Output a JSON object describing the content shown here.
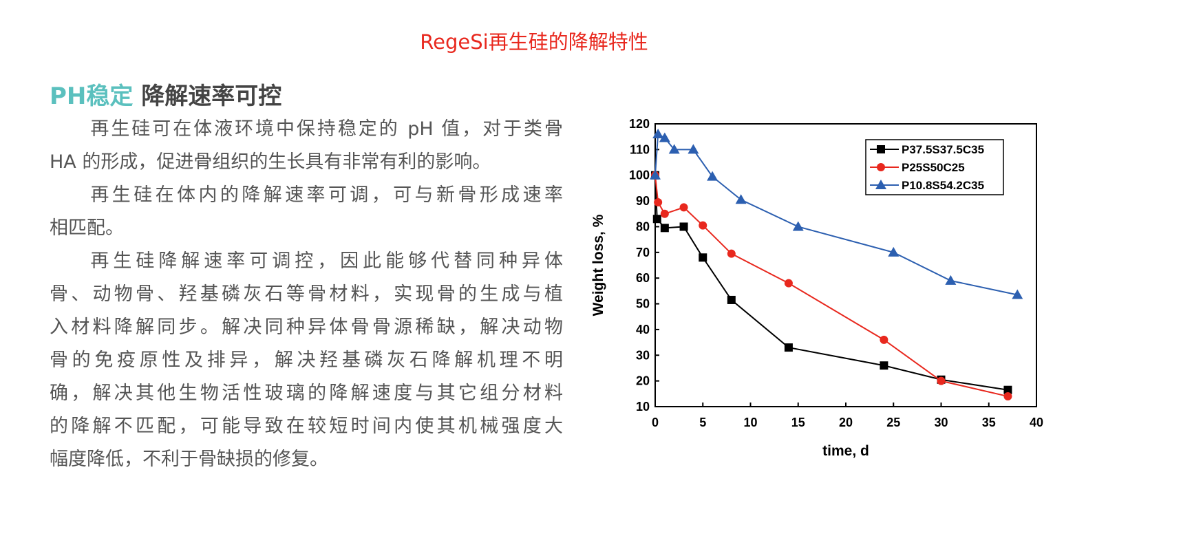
{
  "header": {
    "title": "RegeSi再生硅的降解特性"
  },
  "section": {
    "heading_highlight": "PH稳定",
    "heading_rest": "降解速率可控",
    "paragraphs": [
      [
        "再生硅可在体液环境中保持稳定的 pH 值，对于类骨",
        "HA 的形成，促进骨组织的生长具有非常有利的影响。"
      ],
      [
        "再生硅在体内的降解速率可调，可与新骨形成速率",
        "相匹配。"
      ],
      [
        "再生硅降解速率可调控，因此能够代替同种异体",
        "骨、动物骨、羟基磷灰石等骨材料，实现骨的生成与植",
        "入材料降解同步。解决同种异体骨骨源稀缺，解决动物",
        "骨的免疫原性及排异，解决羟基磷灰石降解机理不明",
        "确，解决其他生物活性玻璃的降解速度与其它组分材料",
        "的降解不匹配，可能导致在较短时间内使其机械强度大",
        "幅度降低，不利于骨缺损的修复。"
      ]
    ]
  },
  "chart_data": {
    "type": "line",
    "x_label": "time, d",
    "y_label": "Weight loss, %",
    "xlim": [
      0,
      40
    ],
    "xticks": [
      0,
      5,
      10,
      15,
      20,
      25,
      30,
      35,
      40
    ],
    "ylim": [
      10,
      120
    ],
    "yticks": [
      10,
      20,
      30,
      40,
      50,
      60,
      70,
      80,
      90,
      100,
      110,
      120
    ],
    "legend": "upper-right",
    "series": [
      {
        "name": "P37.5S37.5C35",
        "color": "#000000",
        "marker": "square",
        "x": [
          0,
          0.2,
          1,
          3,
          5,
          8,
          14,
          24,
          30,
          37
        ],
        "values": [
          100,
          83,
          79.5,
          80,
          68,
          51.5,
          33,
          26,
          20.5,
          16.5
        ]
      },
      {
        "name": "P25S50C25",
        "color": "#e8281e",
        "marker": "circle",
        "x": [
          0,
          0.3,
          1,
          3,
          5,
          8,
          14,
          24,
          30,
          37
        ],
        "values": [
          100,
          89.5,
          85,
          87.5,
          80.5,
          69.5,
          58,
          36,
          20,
          14
        ]
      },
      {
        "name": "P10.8S54.2C35",
        "color": "#2c5fb0",
        "marker": "triangle",
        "x": [
          0,
          0.3,
          1,
          2,
          4,
          6,
          9,
          15,
          25,
          31,
          38
        ],
        "values": [
          100,
          116,
          114.5,
          110,
          110,
          99.5,
          90.5,
          80,
          70,
          59,
          53.5
        ]
      }
    ]
  }
}
